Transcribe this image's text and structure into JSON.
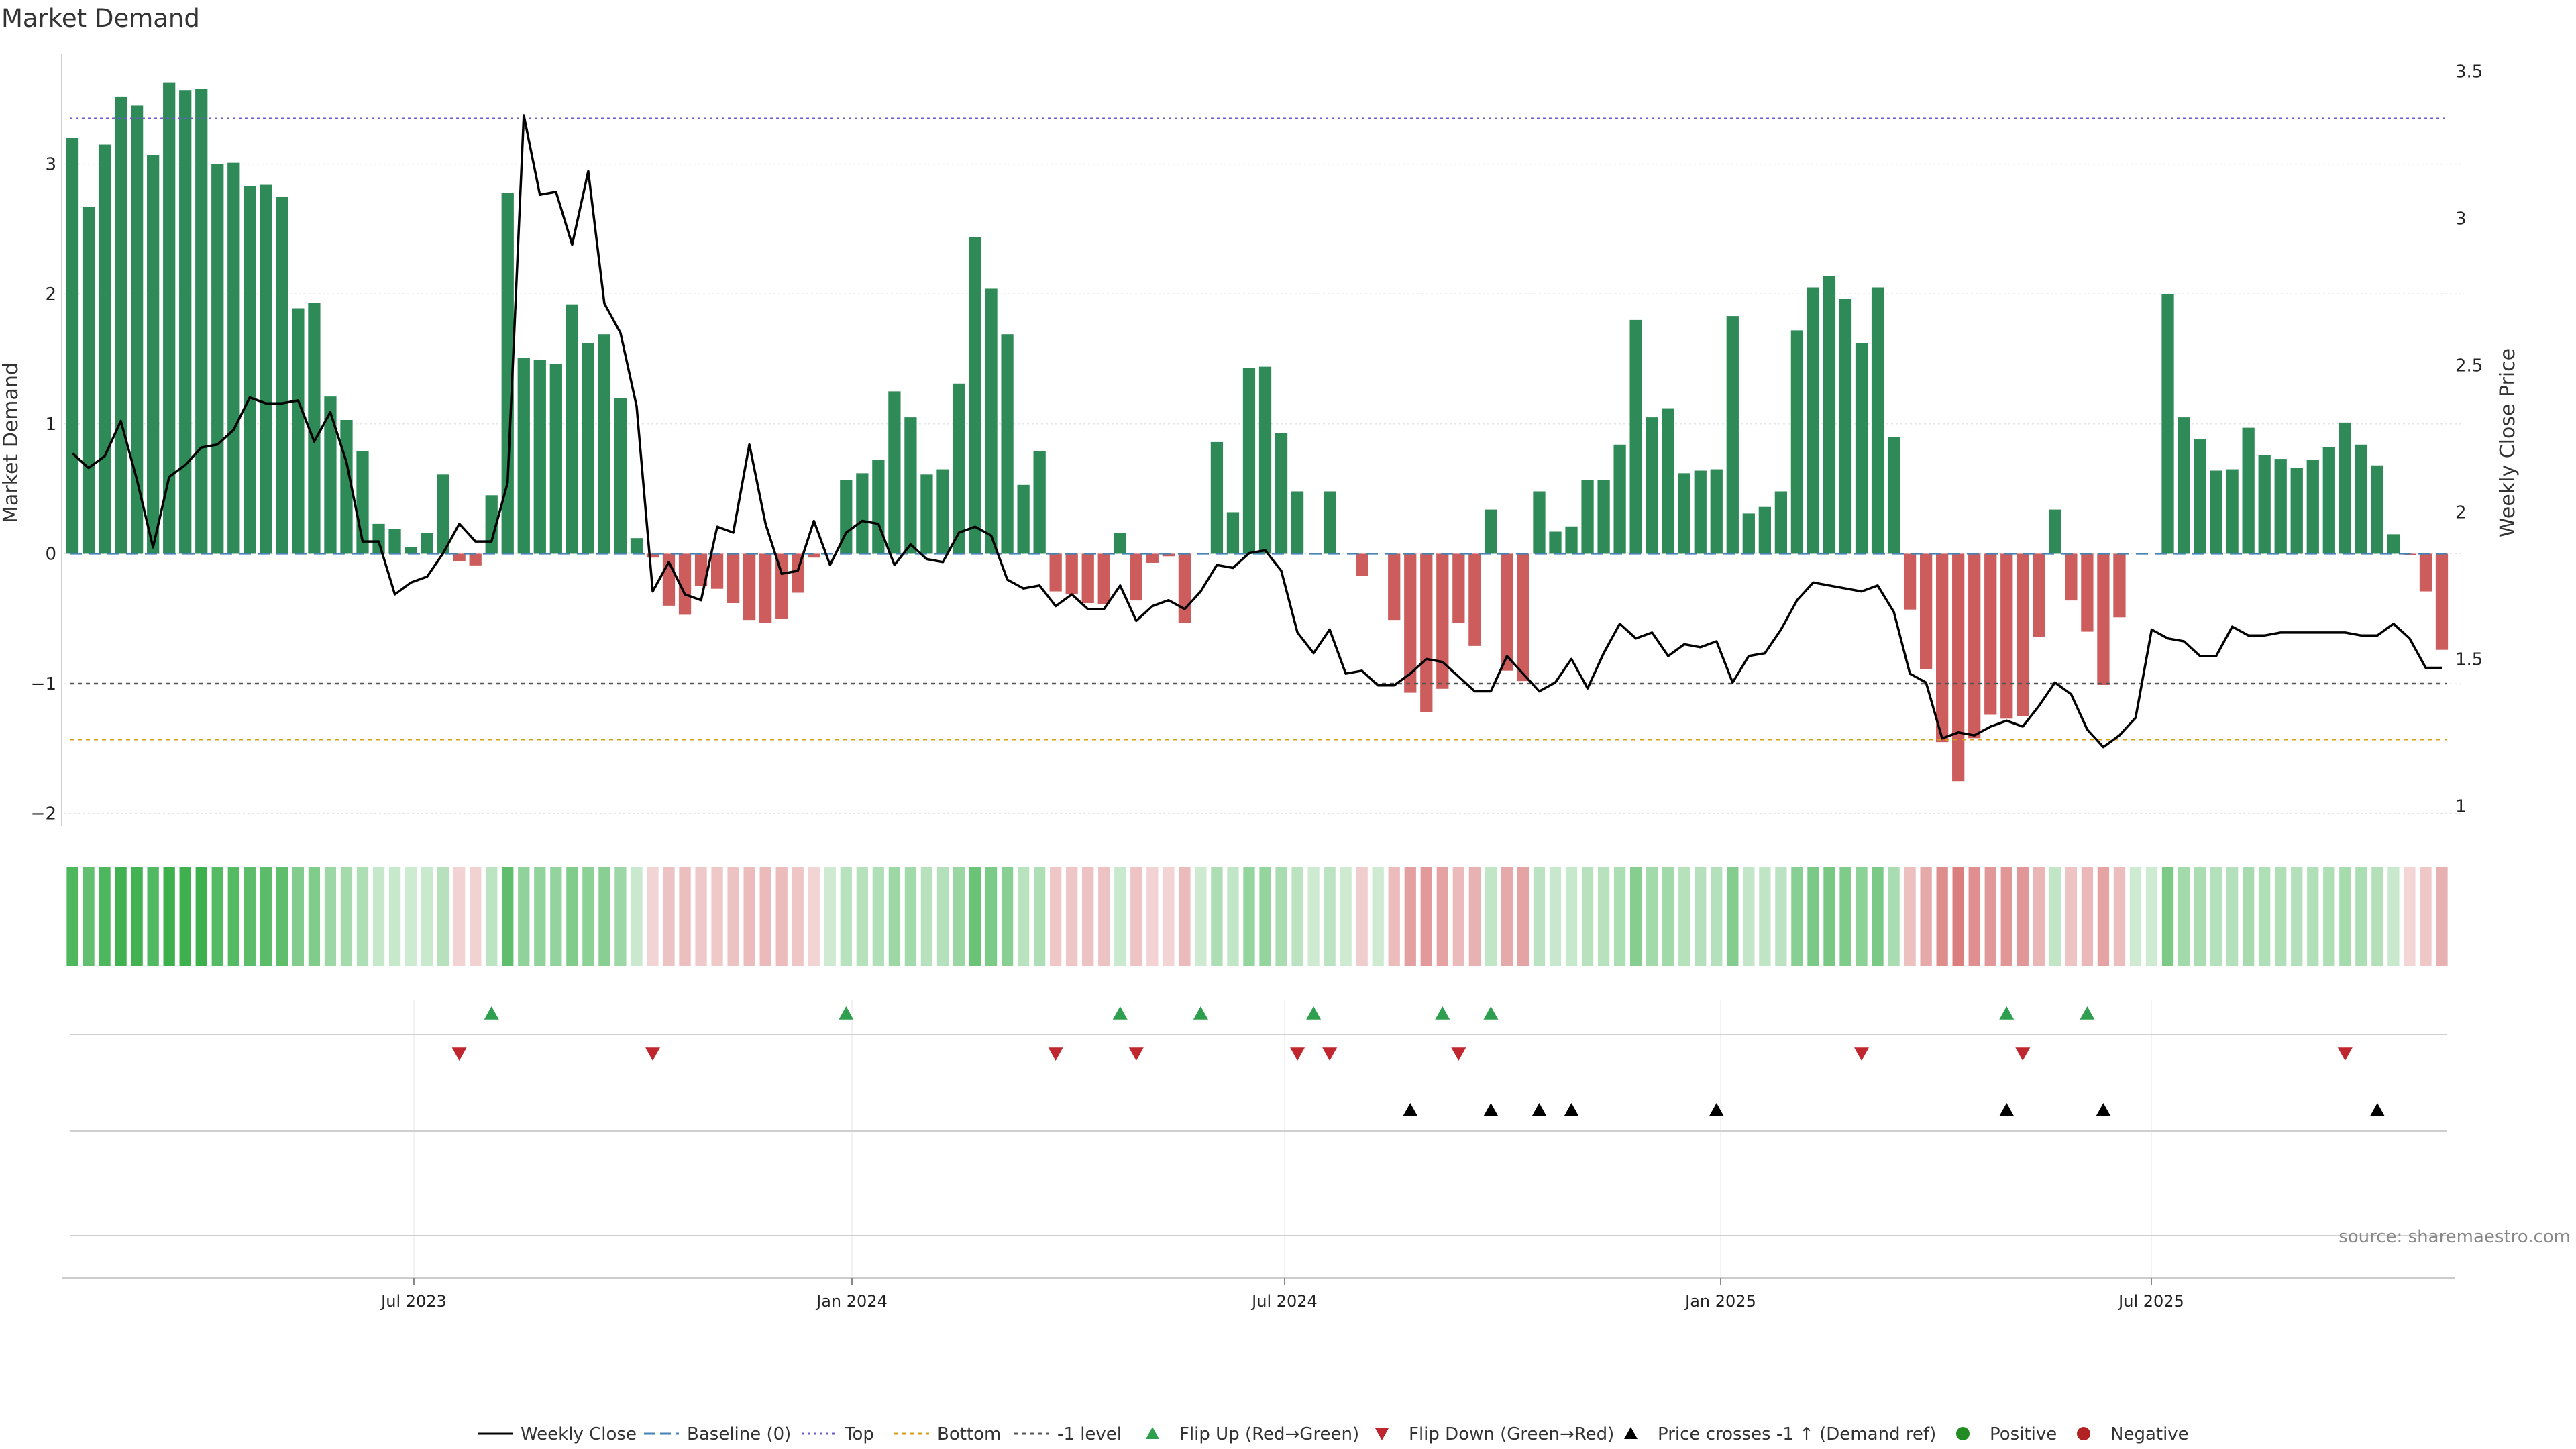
{
  "chart_data": {
    "type": "bar",
    "title": "Market Demand",
    "ylabel": "Market Demand",
    "y2label": "Weekly Close Price",
    "ylim": [
      -2.1,
      3.85
    ],
    "y2lim": [
      0.93,
      3.56
    ],
    "yticks": [
      "−2",
      "−1",
      "0",
      "1",
      "2",
      "3"
    ],
    "y2ticks": [
      "1",
      "1.5",
      "2",
      "2.5",
      "3",
      "3.5"
    ],
    "xticks": [
      "Jul 2023",
      "Jan 2024",
      "Jul 2024",
      "Jan 2025",
      "Jul 2025"
    ],
    "levels": {
      "top": 3.35,
      "bottom": -1.43,
      "minus_one": -1.0,
      "baseline": 0
    },
    "demand": [
      3.2,
      2.67,
      3.15,
      3.52,
      3.45,
      3.07,
      3.63,
      3.57,
      3.58,
      3.0,
      3.01,
      2.83,
      2.84,
      2.75,
      1.89,
      1.93,
      1.21,
      1.03,
      0.79,
      0.23,
      0.19,
      0.05,
      0.16,
      0.61,
      -0.06,
      -0.09,
      0.45,
      2.78,
      1.51,
      1.49,
      1.46,
      1.92,
      1.62,
      1.69,
      1.2,
      0.12,
      -0.03,
      -0.4,
      -0.47,
      -0.25,
      -0.27,
      -0.38,
      -0.51,
      -0.53,
      -0.5,
      -0.3,
      -0.03,
      0.0,
      0.57,
      0.62,
      0.72,
      1.25,
      1.05,
      0.61,
      0.65,
      1.31,
      2.44,
      2.04,
      1.69,
      0.53,
      0.79,
      -0.29,
      -0.31,
      -0.38,
      -0.39,
      0.16,
      -0.36,
      -0.07,
      -0.02,
      -0.53,
      0.0,
      0.86,
      0.32,
      1.43,
      1.44,
      0.93,
      0.48,
      0.0,
      0.48,
      0.0,
      -0.17,
      0.0,
      -0.51,
      -1.07,
      -1.22,
      -1.04,
      -0.53,
      -0.71,
      0.34,
      -0.9,
      -0.98,
      0.48,
      0.17,
      0.21,
      0.57,
      0.57,
      0.84,
      1.8,
      1.05,
      1.12,
      0.62,
      0.64,
      0.65,
      1.83,
      0.31,
      0.36,
      0.48,
      1.72,
      2.05,
      2.14,
      1.96,
      1.62,
      2.05,
      0.9,
      -0.43,
      -0.89,
      -1.45,
      -1.75,
      -1.42,
      -1.24,
      -1.27,
      -1.25,
      -0.64,
      0.34,
      -0.36,
      -0.6,
      -1.01,
      -0.49,
      0.0,
      0.0,
      2.0,
      1.05,
      0.88,
      0.64,
      0.65,
      0.97,
      0.76,
      0.73,
      0.66,
      0.72,
      0.82,
      1.01,
      0.84,
      0.68,
      0.15,
      -0.01,
      -0.29,
      -0.74
    ],
    "price": [
      2.2,
      2.15,
      2.19,
      2.31,
      2.11,
      1.88,
      2.12,
      2.16,
      2.22,
      2.23,
      2.28,
      2.39,
      2.37,
      2.37,
      2.38,
      2.24,
      2.34,
      2.17,
      1.9,
      1.9,
      1.72,
      1.76,
      1.78,
      1.86,
      1.96,
      1.9,
      1.9,
      2.1,
      3.35,
      3.08,
      3.09,
      2.91,
      3.16,
      2.71,
      2.61,
      2.36,
      1.73,
      1.83,
      1.72,
      1.7,
      1.95,
      1.93,
      2.23,
      1.96,
      1.79,
      1.8,
      1.97,
      1.82,
      1.93,
      1.97,
      1.96,
      1.82,
      1.89,
      1.84,
      1.83,
      1.93,
      1.95,
      1.92,
      1.77,
      1.74,
      1.75,
      1.68,
      1.72,
      1.67,
      1.67,
      1.75,
      1.63,
      1.68,
      1.7,
      1.67,
      1.73,
      1.82,
      1.81,
      1.86,
      1.87,
      1.8,
      1.59,
      1.52,
      1.6,
      1.45,
      1.46,
      1.41,
      1.41,
      1.45,
      1.5,
      1.49,
      1.44,
      1.39,
      1.39,
      1.51,
      1.45,
      1.39,
      1.42,
      1.5,
      1.4,
      1.52,
      1.62,
      1.57,
      1.59,
      1.51,
      1.55,
      1.54,
      1.56,
      1.42,
      1.51,
      1.52,
      1.6,
      1.7,
      1.76,
      1.75,
      1.74,
      1.73,
      1.75,
      1.66,
      1.45,
      1.42,
      1.23,
      1.25,
      1.24,
      1.27,
      1.29,
      1.27,
      1.34,
      1.42,
      1.38,
      1.26,
      1.2,
      1.24,
      1.3,
      1.6,
      1.57,
      1.56,
      1.51,
      1.51,
      1.61,
      1.58,
      1.58,
      1.59,
      1.59,
      1.59,
      1.59,
      1.59,
      1.58,
      1.58,
      1.62,
      1.57,
      1.47,
      1.47
    ],
    "flip_up_weeks": [
      26,
      48,
      65,
      70,
      77,
      85,
      88,
      120,
      125
    ],
    "flip_down_weeks": [
      24,
      36,
      61,
      66,
      76,
      78,
      86,
      111,
      121,
      141
    ],
    "price_cross_weeks": [
      83,
      88,
      91,
      93,
      102,
      120,
      126,
      143
    ],
    "legend": [
      "Weekly Close",
      "Baseline (0)",
      "Top",
      "Bottom",
      "-1 level",
      "Flip Up (Red→Green)",
      "Flip Down (Green→Red)",
      "Price crosses -1 ↑ (Demand ref)",
      "Positive",
      "Negative"
    ],
    "colors": {
      "positive": "#2e8b57",
      "negative": "#cd5c5c",
      "line": "#000000",
      "top": "#6a5acd",
      "bottom": "#d4a017",
      "minus_one": "#555555",
      "baseline": "#4682b4",
      "flip_up": "#2e9e4f",
      "flip_down": "#c0262e",
      "cross": "#000000",
      "pos_dot": "#228b22",
      "neg_dot": "#b22222"
    }
  },
  "source": "source: sharemaestro.com"
}
